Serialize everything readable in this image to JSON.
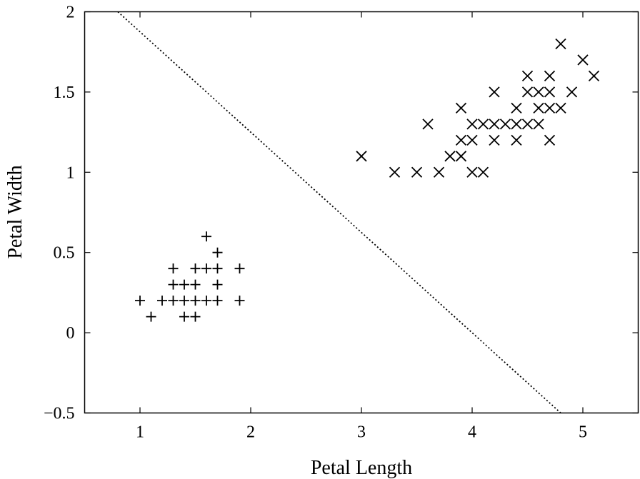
{
  "chart_data": {
    "type": "scatter",
    "title": "",
    "xlabel": "Petal Length",
    "ylabel": "Petal Width",
    "xlim": [
      0.5,
      5.5
    ],
    "ylim": [
      -0.5,
      2
    ],
    "xticks": [
      1,
      2,
      3,
      4,
      5
    ],
    "xtick_labels": [
      "1",
      "2",
      "3",
      "4",
      "5"
    ],
    "yticks": [
      -0.5,
      0,
      0.5,
      1,
      1.5,
      2
    ],
    "ytick_labels": [
      "−0.5",
      "0",
      "0.5",
      "1",
      "1.5",
      "2"
    ],
    "grid": false,
    "legend": "none",
    "series": [
      {
        "marker": "plus",
        "points": [
          [
            1.0,
            0.2
          ],
          [
            1.1,
            0.1
          ],
          [
            1.2,
            0.2
          ],
          [
            1.3,
            0.2
          ],
          [
            1.3,
            0.3
          ],
          [
            1.3,
            0.4
          ],
          [
            1.4,
            0.1
          ],
          [
            1.4,
            0.2
          ],
          [
            1.4,
            0.3
          ],
          [
            1.5,
            0.1
          ],
          [
            1.5,
            0.2
          ],
          [
            1.5,
            0.3
          ],
          [
            1.5,
            0.4
          ],
          [
            1.6,
            0.2
          ],
          [
            1.6,
            0.4
          ],
          [
            1.6,
            0.6
          ],
          [
            1.7,
            0.2
          ],
          [
            1.7,
            0.3
          ],
          [
            1.7,
            0.4
          ],
          [
            1.7,
            0.5
          ],
          [
            1.9,
            0.2
          ],
          [
            1.9,
            0.4
          ]
        ]
      },
      {
        "marker": "cross",
        "points": [
          [
            3.0,
            1.1
          ],
          [
            3.3,
            1.0
          ],
          [
            3.5,
            1.0
          ],
          [
            3.6,
            1.3
          ],
          [
            3.7,
            1.0
          ],
          [
            3.8,
            1.1
          ],
          [
            3.9,
            1.1
          ],
          [
            3.9,
            1.2
          ],
          [
            3.9,
            1.4
          ],
          [
            4.0,
            1.0
          ],
          [
            4.0,
            1.2
          ],
          [
            4.0,
            1.3
          ],
          [
            4.1,
            1.0
          ],
          [
            4.1,
            1.3
          ],
          [
            4.2,
            1.2
          ],
          [
            4.2,
            1.3
          ],
          [
            4.2,
            1.5
          ],
          [
            4.3,
            1.3
          ],
          [
            4.4,
            1.2
          ],
          [
            4.4,
            1.3
          ],
          [
            4.4,
            1.4
          ],
          [
            4.5,
            1.3
          ],
          [
            4.5,
            1.5
          ],
          [
            4.5,
            1.6
          ],
          [
            4.6,
            1.3
          ],
          [
            4.6,
            1.4
          ],
          [
            4.6,
            1.5
          ],
          [
            4.7,
            1.2
          ],
          [
            4.7,
            1.4
          ],
          [
            4.7,
            1.5
          ],
          [
            4.7,
            1.6
          ],
          [
            4.8,
            1.4
          ],
          [
            4.8,
            1.8
          ],
          [
            4.9,
            1.5
          ],
          [
            5.0,
            1.7
          ],
          [
            5.1,
            1.6
          ]
        ]
      }
    ],
    "decision_boundary": {
      "style": "dotted",
      "points": [
        [
          0.8,
          2.0
        ],
        [
          4.8,
          -0.5
        ]
      ]
    }
  }
}
